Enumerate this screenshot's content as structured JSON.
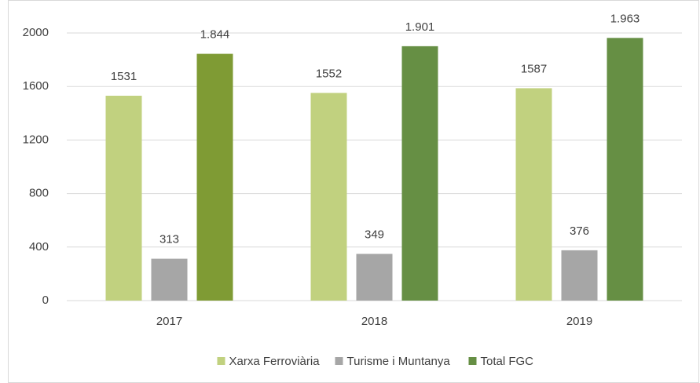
{
  "chart_data": {
    "type": "bar",
    "categories": [
      "2017",
      "2018",
      "2019"
    ],
    "series": [
      {
        "name": "Xarxa Ferroviària",
        "color": "#c1d17f",
        "values": [
          1531,
          1552,
          1587
        ]
      },
      {
        "name": "Turisme i Muntanya",
        "color": "#a6a6a6",
        "values": [
          313,
          349,
          376
        ]
      },
      {
        "name": "Total FGC",
        "color": "#668f44",
        "colors": [
          "#7f9b34",
          "#668f44",
          "#668f44"
        ],
        "values": [
          1844,
          1901,
          1963
        ],
        "value_labels": [
          "1.844",
          "1.901",
          "1.963"
        ]
      }
    ],
    "ylim": [
      0,
      2000
    ],
    "yticks": [
      0,
      400,
      800,
      1200,
      1600,
      2000
    ],
    "grid": true,
    "legend": "bottom"
  }
}
